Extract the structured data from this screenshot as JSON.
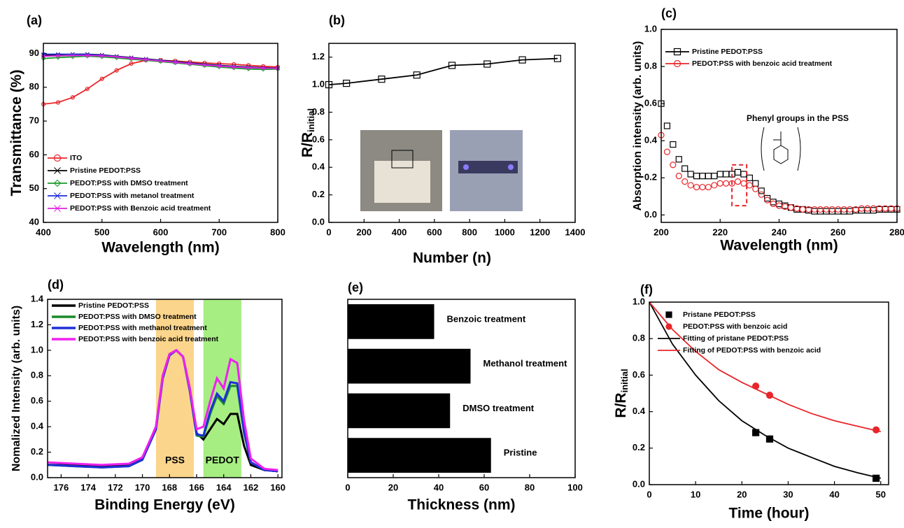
{
  "chart_data": [
    {
      "type": "line",
      "panel_label": "(a)",
      "x_label": "Wavelength (nm)",
      "y_label": "Transmittance (%)",
      "xlim": [
        400,
        800
      ],
      "ylim": [
        40,
        93
      ],
      "xticks": [
        400,
        500,
        600,
        700,
        800
      ],
      "yticks": [
        40,
        50,
        60,
        70,
        80,
        90
      ],
      "legend": "lower left",
      "x": [
        400,
        425,
        450,
        475,
        500,
        525,
        550,
        575,
        600,
        625,
        650,
        675,
        700,
        725,
        750,
        775,
        800
      ],
      "series": [
        {
          "name": "ITO",
          "color": "#e8262a",
          "marker": "circle",
          "values": [
            75,
            75.5,
            77,
            79.5,
            82.5,
            85,
            87,
            88,
            88,
            87.8,
            87.5,
            87.2,
            87,
            86.8,
            86.5,
            86.2,
            86
          ]
        },
        {
          "name": "Pristine PEDOT:PSS",
          "color": "#000000",
          "marker": "cross",
          "values": [
            89.5,
            89.6,
            89.8,
            89.8,
            89.6,
            89.2,
            88.8,
            88.4,
            88,
            87.6,
            87.2,
            86.8,
            86.5,
            86.2,
            86,
            85.8,
            85.7
          ]
        },
        {
          "name": "PEDOT:PSS with DMSO treatment",
          "color": "#1a9a2a",
          "marker": "diamond",
          "values": [
            88.5,
            88.8,
            89,
            89.2,
            89,
            88.7,
            88.3,
            88,
            87.6,
            87.2,
            86.8,
            86.4,
            86,
            85.7,
            85.4,
            85.3,
            85.4
          ]
        },
        {
          "name": "PEDOT:PSS with metanol treatment",
          "color": "#1f2fd8",
          "marker": "cross",
          "values": [
            89.8,
            89.8,
            89.8,
            89.7,
            89.5,
            89.1,
            88.7,
            88.3,
            87.9,
            87.5,
            87.1,
            86.7,
            86.4,
            86.1,
            85.9,
            85.7,
            85.6
          ]
        },
        {
          "name": "PEDOT:PSS with Benzoic acid treatment",
          "color": "#e022e0",
          "marker": "cross",
          "values": [
            89.2,
            89.3,
            89.4,
            89.4,
            89.3,
            89,
            88.6,
            88.2,
            87.8,
            87.4,
            87,
            86.6,
            86.3,
            86,
            85.8,
            85.7,
            85.6
          ]
        }
      ]
    },
    {
      "type": "line",
      "panel_label": "(b)",
      "x_label": "Number (n)",
      "y_label": "R/R",
      "y_label_sub": "initial",
      "xlim": [
        0,
        1400
      ],
      "ylim": [
        0,
        1.3
      ],
      "xticks": [
        0,
        200,
        400,
        600,
        800,
        1000,
        1200,
        1400
      ],
      "yticks": [
        {
          "value": 0,
          "label": "0.0"
        },
        0.2,
        0.4,
        0.6,
        0.8,
        {
          "value": 1,
          "label": "1.0"
        },
        1.2
      ],
      "x": [
        0,
        100,
        300,
        500,
        700,
        900,
        1100,
        1300
      ],
      "series": [
        {
          "color": "#000000",
          "marker": "square",
          "values": [
            1.0,
            1.01,
            1.04,
            1.07,
            1.14,
            1.15,
            1.18,
            1.19
          ]
        }
      ]
    },
    {
      "type": "scatter",
      "panel_label": "(c)",
      "x_label": "Wavelength (nm)",
      "y_label": "Absorption intensity (arb. units)",
      "xlim": [
        200,
        280
      ],
      "ylim": [
        -0.04,
        1.0
      ],
      "xticks": [
        200,
        220,
        240,
        260,
        280
      ],
      "yticks": [
        {
          "value": 0,
          "label": "0.0"
        },
        0.2,
        0.4,
        0.6,
        0.8,
        {
          "value": 1,
          "label": "1.0"
        }
      ],
      "legend": "upper left",
      "annotation": "Phenyl groups in the PSS",
      "highlight": {
        "x": [
          224,
          229
        ],
        "y": [
          0.05,
          0.27
        ],
        "color": "#e8262a"
      },
      "x": [
        200,
        202,
        204,
        206,
        208,
        210,
        212,
        214,
        216,
        218,
        220,
        222,
        224,
        226,
        228,
        230,
        232,
        234,
        236,
        238,
        240,
        242,
        244,
        246,
        248,
        250,
        252,
        254,
        256,
        258,
        260,
        262,
        264,
        266,
        268,
        270,
        272,
        274,
        276,
        278,
        280
      ],
      "series": [
        {
          "name": "Pristine PEDOT:PSS",
          "color": "#000000",
          "marker": "square",
          "values": [
            0.6,
            0.48,
            0.38,
            0.3,
            0.25,
            0.22,
            0.21,
            0.21,
            0.21,
            0.21,
            0.22,
            0.22,
            0.22,
            0.23,
            0.22,
            0.2,
            0.17,
            0.13,
            0.09,
            0.07,
            0.06,
            0.05,
            0.04,
            0.03,
            0.03,
            0.025,
            0.02,
            0.02,
            0.02,
            0.02,
            0.02,
            0.02,
            0.02,
            0.025,
            0.025,
            0.025,
            0.025,
            0.03,
            0.03,
            0.03,
            0.03
          ]
        },
        {
          "name": "PEDOT:PSS with benzoic acid treatment",
          "color": "#e8262a",
          "marker": "circle",
          "values": [
            0.43,
            0.34,
            0.27,
            0.21,
            0.18,
            0.16,
            0.15,
            0.15,
            0.15,
            0.16,
            0.17,
            0.17,
            0.17,
            0.18,
            0.17,
            0.16,
            0.14,
            0.11,
            0.08,
            0.06,
            0.05,
            0.045,
            0.04,
            0.035,
            0.03,
            0.03,
            0.03,
            0.03,
            0.03,
            0.03,
            0.03,
            0.03,
            0.03,
            0.03,
            0.035,
            0.035,
            0.035,
            0.035,
            0.035,
            0.035,
            0.035
          ]
        }
      ]
    },
    {
      "type": "line",
      "panel_label": "(d)",
      "x_label": "Binding Energy (eV)",
      "y_label": "Nomalized Intensity (arb. units)",
      "xlim": [
        177,
        159.7
      ],
      "ylim": [
        0,
        1.4
      ],
      "xticks": [
        176,
        174,
        172,
        170,
        168,
        166,
        164,
        162,
        160
      ],
      "yticks": [
        {
          "value": 0,
          "label": "0.0"
        },
        0.2,
        0.4,
        0.6,
        0.8,
        {
          "value": 1,
          "label": "1.0"
        },
        1.2,
        1.4
      ],
      "legend": "upper left",
      "bands": [
        {
          "label": "PSS",
          "range": [
            169,
            166.2
          ],
          "color": "#fbd58c"
        },
        {
          "label": "PEDOT",
          "range": [
            165.5,
            162.7
          ],
          "color": "#a6ee82"
        }
      ],
      "x": [
        177,
        175,
        173,
        171,
        170,
        169,
        168.5,
        168,
        167.5,
        167,
        166.5,
        166,
        165.5,
        165,
        164.5,
        164,
        163.5,
        163,
        162.5,
        162,
        161,
        160
      ],
      "series": [
        {
          "name": "Pristine PEDOT:PSS",
          "color": "#000000",
          "values": [
            0.1,
            0.1,
            0.09,
            0.1,
            0.15,
            0.4,
            0.8,
            0.97,
            1.0,
            0.95,
            0.7,
            0.35,
            0.3,
            0.38,
            0.46,
            0.42,
            0.5,
            0.5,
            0.25,
            0.1,
            0.06,
            0.05
          ]
        },
        {
          "name": "PEDOT:PSS with DMSO treatment",
          "color": "#1a8a2a",
          "values": [
            0.1,
            0.09,
            0.08,
            0.09,
            0.14,
            0.38,
            0.78,
            0.96,
            1.0,
            0.95,
            0.68,
            0.33,
            0.32,
            0.5,
            0.64,
            0.58,
            0.72,
            0.72,
            0.35,
            0.12,
            0.06,
            0.05
          ]
        },
        {
          "name": "PEDOT:PSS with methanol treatment",
          "color": "#1f2fd8",
          "values": [
            0.1,
            0.09,
            0.08,
            0.09,
            0.14,
            0.38,
            0.78,
            0.96,
            1.0,
            0.95,
            0.68,
            0.34,
            0.33,
            0.52,
            0.66,
            0.6,
            0.75,
            0.74,
            0.36,
            0.12,
            0.06,
            0.05
          ]
        },
        {
          "name": "PEDOT:PSS with benzoic acid treatment",
          "color": "#f020f0",
          "values": [
            0.12,
            0.11,
            0.1,
            0.11,
            0.16,
            0.4,
            0.8,
            0.97,
            1.0,
            0.95,
            0.7,
            0.38,
            0.4,
            0.6,
            0.78,
            0.7,
            0.93,
            0.9,
            0.45,
            0.15,
            0.07,
            0.06
          ]
        }
      ]
    },
    {
      "type": "bar",
      "orientation": "horizontal",
      "panel_label": "(e)",
      "x_label": "Thickness (nm)",
      "xlim": [
        0,
        100
      ],
      "xticks": [
        0,
        20,
        40,
        60,
        80,
        100
      ],
      "color": "#000000",
      "categories": [
        "Benzoic treatment",
        "Methanol treatment",
        "DMSO treatment",
        "Pristine"
      ],
      "values": [
        38,
        54,
        45,
        63
      ]
    },
    {
      "type": "line",
      "panel_label": "(f)",
      "x_label": "Time (hour)",
      "y_label": "R/R",
      "y_label_sub": "initial",
      "xlim": [
        0,
        51.7
      ],
      "ylim": [
        0,
        1.0
      ],
      "xticks": [
        0,
        10,
        20,
        30,
        40,
        50
      ],
      "yticks": [
        {
          "value": 0,
          "label": "0.0"
        },
        0.2,
        0.4,
        0.6,
        0.8,
        {
          "value": 1,
          "label": "1.0"
        }
      ],
      "legend": "upper right",
      "series": [
        {
          "name": "Pristane PEDOT:PSS",
          "color": "#000000",
          "marker": "filled-square",
          "line": false,
          "x": [
            23,
            26,
            49
          ],
          "values": [
            0.285,
            0.25,
            0.035
          ]
        },
        {
          "name": "PEDOT:PSS with benzoic acid",
          "color": "#e8262a",
          "marker": "filled-circle",
          "line": false,
          "x": [
            23,
            26,
            49
          ],
          "values": [
            0.54,
            0.49,
            0.3
          ]
        },
        {
          "name": "Fitting of pristane PEDOT:PSS",
          "color": "#000000",
          "x": [
            0,
            5,
            10,
            15,
            20,
            25,
            30,
            35,
            40,
            45,
            50
          ],
          "values": [
            1,
            0.77,
            0.6,
            0.46,
            0.35,
            0.27,
            0.2,
            0.15,
            0.1,
            0.065,
            0.035
          ]
        },
        {
          "name": "Fitting of PEDOT:PSS with benzoic acid",
          "color": "#e8262a",
          "x": [
            0,
            5,
            10,
            15,
            20,
            25,
            30,
            35,
            40,
            45,
            50
          ],
          "values": [
            1,
            0.85,
            0.73,
            0.63,
            0.56,
            0.5,
            0.44,
            0.39,
            0.35,
            0.32,
            0.29
          ]
        }
      ]
    }
  ]
}
